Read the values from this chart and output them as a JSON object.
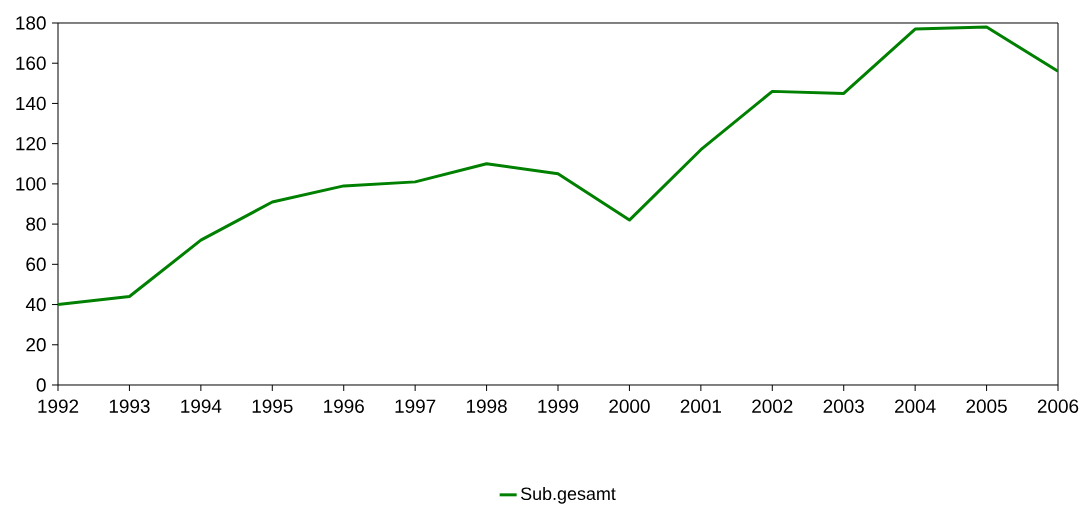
{
  "chart_data": {
    "type": "line",
    "categories": [
      "1992",
      "1993",
      "1994",
      "1995",
      "1996",
      "1997",
      "1998",
      "1999",
      "2000",
      "2001",
      "2002",
      "2003",
      "2004",
      "2005",
      "2006"
    ],
    "series": [
      {
        "name": "Sub.gesamt",
        "color": "#008000",
        "values": [
          40,
          44,
          72,
          91,
          99,
          101,
          110,
          105,
          82,
          117,
          146,
          145,
          177,
          178,
          156
        ]
      }
    ],
    "ylim": [
      0,
      180
    ],
    "yticks": [
      0,
      20,
      40,
      60,
      80,
      100,
      120,
      140,
      160,
      180
    ],
    "grid": false,
    "legend": "bottom",
    "marker": "none",
    "line_style": "solid"
  }
}
